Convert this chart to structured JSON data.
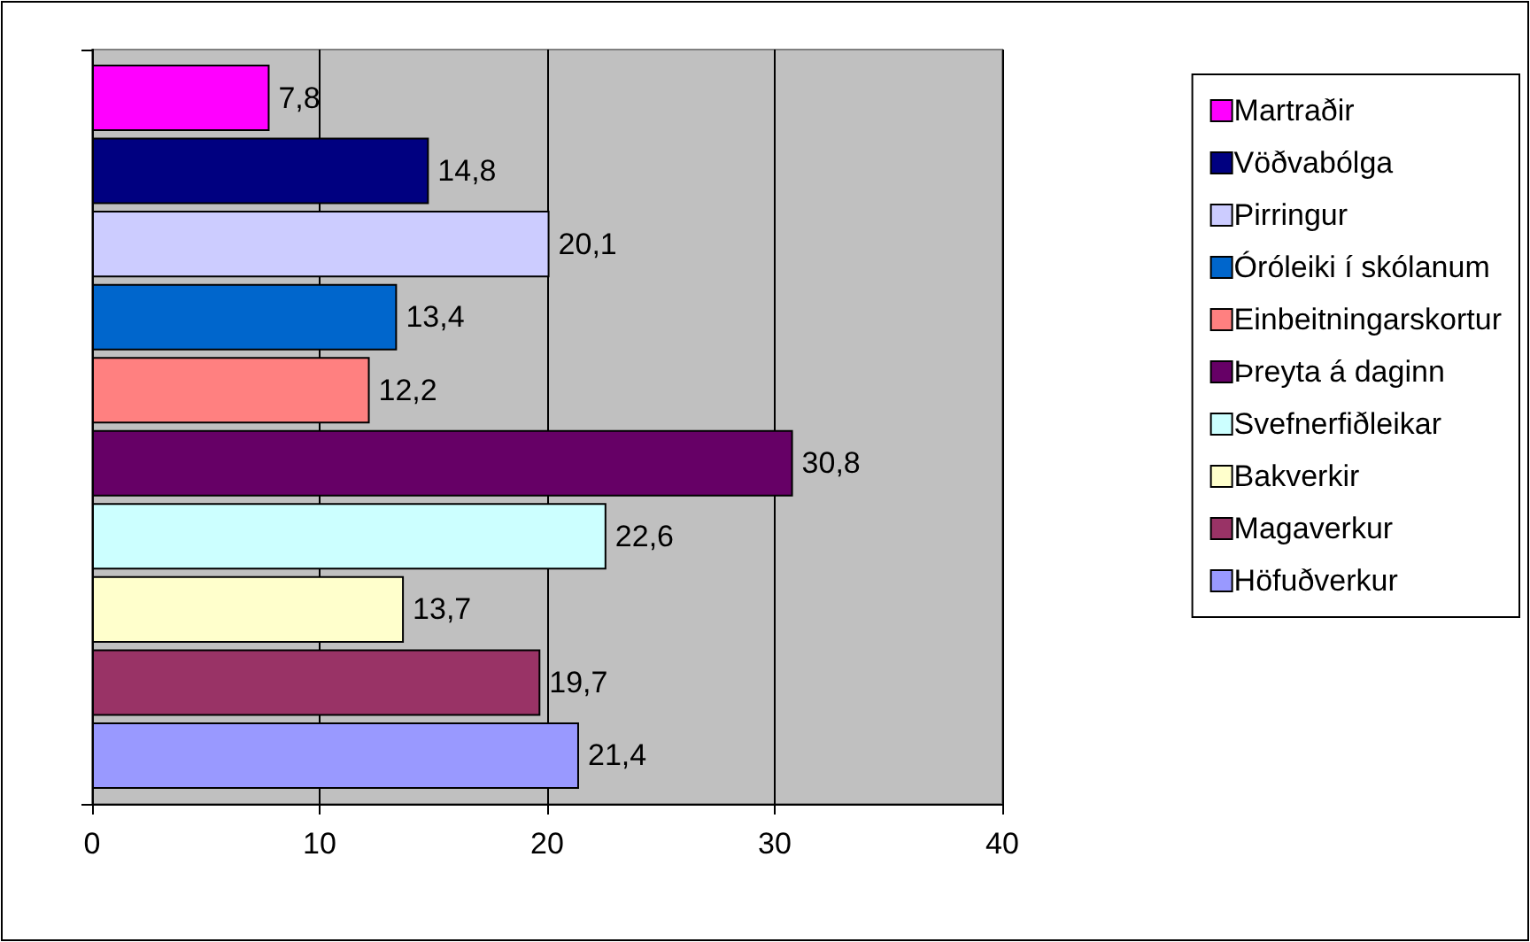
{
  "chart_data": {
    "type": "bar",
    "orientation": "horizontal",
    "categories": [
      null
    ],
    "series": [
      {
        "name": "Martraðir",
        "color": "#ff00ff",
        "values": [
          7.8
        ],
        "value_labels": [
          "7,8"
        ]
      },
      {
        "name": "Vöðvabólga",
        "color": "#000080",
        "values": [
          14.8
        ],
        "value_labels": [
          "14,8"
        ]
      },
      {
        "name": "Pirringur",
        "color": "#ccccff",
        "values": [
          20.1
        ],
        "value_labels": [
          "20,1"
        ]
      },
      {
        "name": "Óróleiki í skólanum",
        "color": "#0066cc",
        "values": [
          13.4
        ],
        "value_labels": [
          "13,4"
        ]
      },
      {
        "name": "Einbeitningarskortur",
        "color": "#ff8080",
        "values": [
          12.2
        ],
        "value_labels": [
          "12,2"
        ]
      },
      {
        "name": "Þreyta á daginn",
        "color": "#660066",
        "values": [
          30.8
        ],
        "value_labels": [
          "30,8"
        ]
      },
      {
        "name": "Svefnerfiðleikar",
        "color": "#ccffff",
        "values": [
          22.6
        ],
        "value_labels": [
          "22,6"
        ]
      },
      {
        "name": "Bakverkir",
        "color": "#ffffcc",
        "values": [
          13.7
        ],
        "value_labels": [
          "13,7"
        ]
      },
      {
        "name": "Magaverkur",
        "color": "#993366",
        "values": [
          19.7
        ],
        "value_labels": [
          "19,7"
        ]
      },
      {
        "name": "Höfuðverkur",
        "color": "#9999ff",
        "values": [
          21.4
        ],
        "value_labels": [
          "21,4"
        ]
      }
    ],
    "xlim": [
      0,
      40
    ],
    "xticks": [
      0,
      10,
      20,
      30,
      40
    ],
    "grid": "x",
    "legend": "right"
  }
}
